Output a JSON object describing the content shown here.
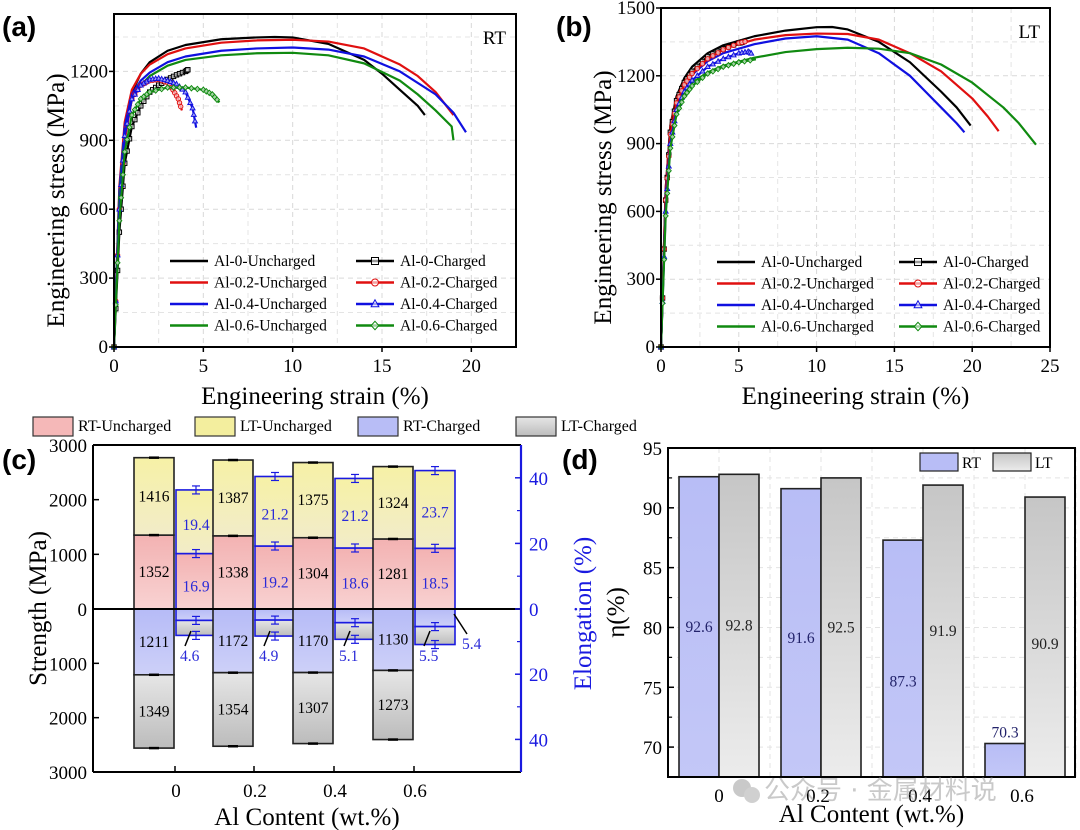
{
  "chart_data": [
    {
      "id": "a",
      "panel_label": "(a)",
      "type": "line",
      "condition_label": "RT",
      "xlabel": "Engineering strain (%)",
      "ylabel": "Engineering stress  (MPa)",
      "xlim": [
        0,
        22.5
      ],
      "ylim": [
        0,
        1450
      ],
      "xticks": [
        0,
        5,
        10,
        15,
        20
      ],
      "yticks": [
        0,
        300,
        600,
        900,
        1200
      ],
      "grid": true,
      "legend_position": "bottom-right",
      "series": [
        {
          "name": "Al-0-Uncharged",
          "color": "#000000",
          "marker": "none",
          "x": [
            0,
            0.3,
            0.6,
            1,
            1.5,
            2,
            3,
            4,
            6,
            8,
            9,
            10,
            12,
            14,
            15,
            16,
            17,
            17.4
          ],
          "y": [
            0,
            650,
            950,
            1110,
            1190,
            1240,
            1290,
            1315,
            1340,
            1348,
            1350,
            1348,
            1320,
            1250,
            1190,
            1120,
            1050,
            1010
          ]
        },
        {
          "name": "Al-0.2-Uncharged",
          "color": "#e01010",
          "marker": "none",
          "x": [
            0,
            0.3,
            0.6,
            1,
            1.5,
            2,
            3,
            4,
            6,
            8,
            10,
            12,
            14,
            16,
            17,
            18,
            19
          ],
          "y": [
            0,
            700,
            980,
            1120,
            1190,
            1230,
            1275,
            1300,
            1325,
            1335,
            1338,
            1330,
            1300,
            1230,
            1180,
            1110,
            1010
          ]
        },
        {
          "name": "Al-0.4-Uncharged",
          "color": "#1010e0",
          "marker": "none",
          "x": [
            0,
            0.3,
            0.6,
            1,
            1.5,
            2,
            3,
            4,
            6,
            8,
            10,
            12,
            14,
            16,
            18,
            19,
            19.7
          ],
          "y": [
            0,
            680,
            960,
            1100,
            1160,
            1195,
            1240,
            1265,
            1290,
            1300,
            1304,
            1295,
            1265,
            1200,
            1100,
            1020,
            935
          ]
        },
        {
          "name": "Al-0.6-Uncharged",
          "color": "#108a10",
          "marker": "none",
          "x": [
            0,
            0.3,
            0.6,
            1,
            1.5,
            2,
            3,
            4,
            6,
            8,
            10,
            12,
            14,
            16,
            17,
            18,
            18.9,
            19
          ],
          "y": [
            0,
            650,
            920,
            1080,
            1140,
            1180,
            1225,
            1250,
            1270,
            1279,
            1281,
            1270,
            1235,
            1160,
            1100,
            1030,
            960,
            900
          ]
        },
        {
          "name": "Al-0-Charged",
          "color": "#000000",
          "marker": "square",
          "x": [
            0,
            0.3,
            0.6,
            1,
            1.5,
            2,
            2.5,
            3,
            3.5,
            4,
            4.2
          ],
          "y": [
            0,
            500,
            800,
            960,
            1050,
            1110,
            1140,
            1165,
            1185,
            1200,
            1211
          ]
        },
        {
          "name": "Al-0.2-Charged",
          "color": "#e01010",
          "marker": "circle",
          "x": [
            0,
            0.3,
            0.6,
            1,
            1.5,
            2,
            2.5,
            3,
            3.3,
            3.6,
            3.8
          ],
          "y": [
            0,
            600,
            900,
            1080,
            1140,
            1160,
            1165,
            1150,
            1120,
            1080,
            1030
          ]
        },
        {
          "name": "Al-0.4-Charged",
          "color": "#1010e0",
          "marker": "triangle",
          "x": [
            0,
            0.3,
            0.6,
            1,
            1.5,
            2,
            2.5,
            3,
            3.5,
            4,
            4.4,
            4.6
          ],
          "y": [
            0,
            600,
            920,
            1080,
            1140,
            1165,
            1170,
            1160,
            1145,
            1110,
            1040,
            955
          ]
        },
        {
          "name": "Al-0.6-Charged",
          "color": "#108a10",
          "marker": "diamond",
          "x": [
            0,
            0.3,
            0.6,
            1,
            1.5,
            2,
            3,
            4,
            5,
            5.5,
            5.9
          ],
          "y": [
            0,
            550,
            850,
            1010,
            1080,
            1110,
            1130,
            1130,
            1120,
            1100,
            1065
          ]
        }
      ]
    },
    {
      "id": "b",
      "panel_label": "(b)",
      "type": "line",
      "condition_label": "LT",
      "xlabel": "Engineering strain (%)",
      "ylabel": "Engineering stress  (MPa)",
      "xlim": [
        0,
        25
      ],
      "ylim": [
        0,
        1500
      ],
      "xticks": [
        0,
        5,
        10,
        15,
        20,
        25
      ],
      "yticks": [
        0,
        300,
        600,
        900,
        1200,
        1500
      ],
      "grid": true,
      "legend_position": "bottom-right",
      "series": [
        {
          "name": "Al-0-Uncharged",
          "color": "#000000",
          "marker": "none",
          "x": [
            0,
            0.3,
            0.6,
            1,
            1.5,
            2,
            3,
            4,
            6,
            8,
            10,
            11,
            12,
            14,
            16,
            18,
            19,
            19.9
          ],
          "y": [
            0,
            700,
            980,
            1110,
            1190,
            1240,
            1300,
            1335,
            1375,
            1400,
            1415,
            1416,
            1405,
            1350,
            1260,
            1130,
            1060,
            980
          ]
        },
        {
          "name": "Al-0.2-Uncharged",
          "color": "#e01010",
          "marker": "none",
          "x": [
            0,
            0.3,
            0.6,
            1,
            1.5,
            2,
            3,
            4,
            6,
            8,
            10,
            12,
            14,
            16,
            18,
            20,
            21,
            21.7
          ],
          "y": [
            0,
            700,
            970,
            1100,
            1175,
            1220,
            1285,
            1320,
            1360,
            1380,
            1387,
            1385,
            1360,
            1300,
            1220,
            1100,
            1020,
            955
          ]
        },
        {
          "name": "Al-0.4-Uncharged",
          "color": "#1010e0",
          "marker": "none",
          "x": [
            0,
            0.3,
            0.6,
            1,
            1.5,
            2,
            3,
            4,
            6,
            8,
            10,
            12,
            14,
            16,
            17,
            18,
            19,
            19.5
          ],
          "y": [
            0,
            680,
            950,
            1080,
            1160,
            1205,
            1265,
            1300,
            1340,
            1365,
            1375,
            1360,
            1300,
            1200,
            1130,
            1060,
            990,
            950
          ]
        },
        {
          "name": "Al-0.6-Uncharged",
          "color": "#108a10",
          "marker": "none",
          "x": [
            0,
            0.3,
            0.6,
            1,
            1.5,
            2,
            3,
            4,
            6,
            8,
            10,
            12,
            14,
            16,
            18,
            20,
            22,
            23,
            24.1
          ],
          "y": [
            0,
            650,
            920,
            1060,
            1130,
            1170,
            1215,
            1245,
            1280,
            1305,
            1318,
            1324,
            1320,
            1300,
            1250,
            1170,
            1060,
            990,
            895
          ]
        },
        {
          "name": "Al-0-Charged",
          "color": "#000000",
          "marker": "square",
          "x": [
            0,
            0.3,
            0.6,
            1,
            1.5,
            2,
            3,
            4,
            5,
            5.3
          ],
          "y": [
            0,
            650,
            950,
            1090,
            1170,
            1220,
            1285,
            1320,
            1345,
            1349
          ]
        },
        {
          "name": "Al-0.2-Charged",
          "color": "#e01010",
          "marker": "circle",
          "x": [
            0,
            0.3,
            0.6,
            1,
            1.5,
            2,
            3,
            4,
            5,
            5.6
          ],
          "y": [
            0,
            650,
            940,
            1080,
            1160,
            1210,
            1275,
            1315,
            1345,
            1354
          ]
        },
        {
          "name": "Al-0.4-Charged",
          "color": "#1010e0",
          "marker": "triangle",
          "x": [
            0,
            0.3,
            0.6,
            1,
            1.5,
            2,
            3,
            4,
            5,
            5.6,
            5.9
          ],
          "y": [
            0,
            600,
            900,
            1050,
            1130,
            1180,
            1240,
            1275,
            1300,
            1307,
            1295
          ]
        },
        {
          "name": "Al-0.6-Charged",
          "color": "#108a10",
          "marker": "diamond",
          "x": [
            0,
            0.3,
            0.6,
            1,
            1.5,
            2,
            3,
            4,
            5,
            6.1
          ],
          "y": [
            0,
            580,
            880,
            1030,
            1110,
            1155,
            1210,
            1240,
            1260,
            1273
          ]
        }
      ]
    },
    {
      "id": "c",
      "panel_label": "(c)",
      "type": "bar",
      "xlabel": "Al Content (wt.%)",
      "ylabel": "Strength (MPa)",
      "y2label": "Elongation (%)",
      "categories": [
        "0",
        "0.2",
        "0.4",
        "0.6"
      ],
      "ylim_top": 3000,
      "ylim_bottom": 3000,
      "yticks_labels": [
        "3000",
        "2000",
        "1000",
        "0",
        "1000",
        "2000",
        "3000"
      ],
      "y2ticks_labels": [
        "40",
        "20",
        "0",
        "20",
        "40"
      ],
      "legend": [
        {
          "name": "RT-Uncharged",
          "color": "#f5b8b8"
        },
        {
          "name": "LT-Uncharged",
          "color": "#f3ee9e"
        },
        {
          "name": "RT-Charged",
          "color": "#b8bdf6"
        },
        {
          "name": "LT-Charged",
          "color": "#cfcfcf"
        }
      ],
      "strength": {
        "RT_Uncharged": [
          1352,
          1338,
          1304,
          1281
        ],
        "LT_Uncharged": [
          1416,
          1387,
          1375,
          1324
        ],
        "RT_Charged": [
          1211,
          1172,
          1170,
          1130
        ],
        "LT_Charged": [
          1349,
          1354,
          1307,
          1273
        ]
      },
      "elongation": {
        "RT_Uncharged": [
          16.9,
          19.2,
          18.6,
          18.5
        ],
        "LT_Uncharged": [
          19.4,
          21.2,
          21.2,
          23.7
        ],
        "RT_Charged": [
          3.5,
          3.4,
          4.2,
          5.4
        ],
        "LT_Charged": [
          4.6,
          4.9,
          5.1,
          5.5
        ]
      },
      "legend_position": "top"
    },
    {
      "id": "d",
      "panel_label": "(d)",
      "type": "bar",
      "xlabel": "Al Content (wt.%)",
      "ylabel": "η(%)",
      "categories": [
        "0",
        "0.2",
        "0.4",
        "0.6"
      ],
      "ylim": [
        67.5,
        95
      ],
      "yticks": [
        70,
        75,
        80,
        85,
        90,
        95
      ],
      "grid": true,
      "legend_position": "top-right",
      "series": [
        {
          "name": "RT",
          "color": "#b8bdf6",
          "values": [
            92.6,
            91.6,
            87.3,
            70.3
          ]
        },
        {
          "name": "LT",
          "color": "#cfcfcf",
          "values": [
            92.8,
            92.5,
            91.9,
            90.9
          ]
        }
      ]
    }
  ],
  "watermark": "公众号 · 金属材料说"
}
